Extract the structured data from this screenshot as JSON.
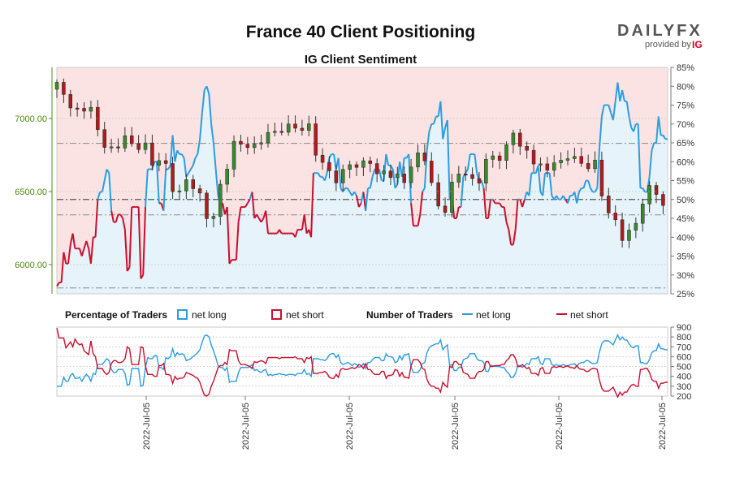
{
  "title": "France 40 Client Positioning",
  "subtitle": "IG Client Sentiment",
  "logo": {
    "brand": "DAILYFX",
    "provided_by": "provided by",
    "ig": "IG"
  },
  "colors": {
    "long": "#2b9de0",
    "short": "#c8102e",
    "bear_band": "#fbe3e4",
    "bull_band": "#e6f3fb",
    "candle_up": "#3a8a2a",
    "candle_down": "#b01c1c",
    "price_axis": "#4f8a10"
  },
  "legend": {
    "pct_heading": "Percentage of Traders",
    "num_heading": "Number of Traders",
    "net_long": "net long",
    "net_short": "net short"
  },
  "chart_data": [
    {
      "type": "candlestick",
      "title": "France 40 Client Positioning",
      "subtitle": "IG Client Sentiment",
      "y_left_label": "",
      "y_left_ticks": [
        "6000.00",
        "6500.00",
        "7000.00"
      ],
      "y_left_range": [
        5800,
        7350
      ],
      "y_right_ticks": [
        "25%",
        "30%",
        "35%",
        "40%",
        "45%",
        "50%",
        "55%",
        "60%",
        "65%",
        "70%",
        "75%",
        "80%",
        "85%"
      ],
      "y_right_range": [
        25,
        85
      ],
      "reference_lines": {
        "price": [
          6830,
          6340,
          5840
        ],
        "percent_net_long": 50
      },
      "net_long_pct": [
        27,
        28,
        28,
        36,
        33,
        33,
        38,
        41,
        37,
        37,
        37,
        35,
        37,
        39,
        37,
        33,
        40,
        40,
        50,
        52,
        52,
        55,
        58,
        57,
        47,
        44,
        44,
        46,
        46,
        45,
        42,
        31,
        32,
        48,
        48,
        48,
        48,
        29,
        30,
        48,
        58,
        58,
        58,
        60,
        60,
        49,
        49,
        47,
        58,
        58,
        59,
        67,
        60,
        63,
        62,
        62,
        61,
        56,
        57,
        58,
        59,
        61,
        62,
        66,
        73,
        79,
        80,
        78,
        70,
        65,
        58,
        51,
        49,
        49,
        46,
        48,
        33,
        34,
        34,
        34,
        44,
        48,
        48,
        48,
        49,
        50,
        52,
        45,
        46,
        45,
        44,
        45,
        47,
        41,
        41,
        41,
        41,
        41,
        42,
        41,
        41,
        41,
        41,
        41,
        41,
        40,
        42,
        42,
        42,
        46,
        41,
        42,
        40,
        57,
        57,
        57,
        56,
        56,
        55,
        57,
        61,
        62,
        62,
        58,
        61,
        53,
        52,
        53,
        53,
        52,
        51,
        52,
        51,
        48,
        49,
        52,
        47,
        53,
        53,
        56,
        58,
        58,
        58,
        55,
        55,
        62,
        59,
        59,
        58,
        53,
        54,
        60,
        56,
        61,
        61,
        62,
        49,
        43,
        43,
        43,
        46,
        52,
        53,
        63,
        68,
        70,
        70,
        72,
        72,
        76,
        66,
        69,
        71,
        50,
        51,
        45,
        45,
        48,
        48,
        56,
        57,
        58,
        62,
        62,
        62,
        57,
        55,
        55,
        53,
        45,
        45,
        50,
        50,
        49,
        49,
        49,
        48,
        48,
        44,
        42,
        38,
        38,
        42,
        50,
        50,
        48,
        50,
        52,
        51,
        57,
        57,
        57,
        59,
        52,
        51,
        57,
        57,
        57,
        51,
        50,
        51,
        50,
        50,
        51,
        50,
        49,
        51,
        51,
        52,
        49,
        52,
        53,
        53,
        55,
        55,
        53,
        52,
        52,
        53,
        64,
        72,
        75,
        75,
        75,
        73,
        71,
        76,
        81,
        76,
        79,
        76,
        76,
        72,
        69,
        68,
        70,
        70,
        53,
        53,
        52,
        52,
        56,
        63,
        65,
        65,
        72,
        67,
        67,
        66,
        66
      ],
      "reading_notes": "price candles plotted against left axis; net-long % shaded line against right axis"
    },
    {
      "type": "line",
      "title": "",
      "legend": [
        "Percentage of Traders net long",
        "Percentage of Traders net short",
        "Number of Traders net long",
        "Number of Traders net short"
      ],
      "y_ticks": [
        "200",
        "300",
        "400",
        "500",
        "600",
        "700",
        "800",
        "900"
      ],
      "y_range": [
        200,
        900
      ],
      "x_tick_labels": [
        "2022-Jul-05",
        "2022-Jul-05",
        "2022-Jul-05",
        "2022-Jul-05",
        "2022-Jul-05",
        "2022-Jul-05"
      ],
      "series": [
        {
          "name": "net long",
          "values": [
            300,
            300,
            300,
            390,
            350,
            350,
            410,
            430,
            380,
            380,
            390,
            350,
            390,
            420,
            400,
            350,
            430,
            420,
            520,
            520,
            520,
            550,
            580,
            560,
            470,
            440,
            440,
            470,
            470,
            470,
            430,
            310,
            320,
            480,
            480,
            480,
            480,
            300,
            310,
            490,
            590,
            580,
            580,
            610,
            610,
            490,
            490,
            470,
            590,
            580,
            600,
            680,
            600,
            640,
            620,
            630,
            620,
            560,
            570,
            580,
            600,
            620,
            640,
            670,
            750,
            810,
            820,
            800,
            720,
            660,
            590,
            510,
            490,
            490,
            460,
            490,
            340,
            350,
            350,
            350,
            440,
            490,
            490,
            490,
            490,
            500,
            520,
            460,
            470,
            450,
            440,
            460,
            470,
            410,
            420,
            410,
            420,
            420,
            430,
            420,
            420,
            410,
            420,
            420,
            420,
            410,
            430,
            430,
            430,
            470,
            420,
            430,
            400,
            580,
            580,
            580,
            570,
            570,
            560,
            580,
            620,
            630,
            630,
            590,
            620,
            540,
            520,
            530,
            540,
            530,
            510,
            530,
            520,
            490,
            500,
            530,
            480,
            540,
            540,
            570,
            590,
            590,
            590,
            560,
            560,
            630,
            600,
            600,
            590,
            540,
            550,
            610,
            570,
            620,
            620,
            630,
            500,
            440,
            440,
            440,
            470,
            530,
            540,
            640,
            690,
            710,
            720,
            730,
            730,
            770,
            670,
            700,
            720,
            510,
            520,
            460,
            460,
            490,
            490,
            570,
            580,
            590,
            630,
            630,
            630,
            580,
            560,
            560,
            540,
            450,
            450,
            510,
            510,
            500,
            500,
            500,
            490,
            490,
            450,
            430,
            390,
            390,
            430,
            510,
            510,
            490,
            510,
            530,
            520,
            580,
            580,
            580,
            600,
            530,
            520,
            580,
            580,
            580,
            520,
            510,
            520,
            510,
            510,
            520,
            510,
            500,
            520,
            520,
            530,
            500,
            530,
            540,
            540,
            560,
            560,
            540,
            530,
            530,
            540,
            650,
            730,
            760,
            760,
            760,
            740,
            720,
            770,
            820,
            770,
            800,
            770,
            770,
            730,
            700,
            690,
            710,
            710,
            540,
            540,
            530,
            530,
            570,
            640,
            660,
            660,
            730,
            680,
            680,
            670,
            670
          ]
        },
        {
          "name": "net short",
          "values": [
            890,
            790,
            790,
            790,
            690,
            720,
            750,
            700,
            780,
            740,
            720,
            730,
            660,
            640,
            620,
            760,
            630,
            600,
            480,
            480,
            480,
            440,
            420,
            440,
            530,
            560,
            560,
            540,
            540,
            550,
            580,
            700,
            680,
            520,
            520,
            520,
            520,
            700,
            690,
            510,
            420,
            420,
            420,
            400,
            400,
            510,
            510,
            530,
            420,
            420,
            410,
            330,
            400,
            370,
            380,
            380,
            390,
            440,
            430,
            420,
            410,
            390,
            380,
            340,
            270,
            210,
            200,
            220,
            300,
            350,
            420,
            490,
            510,
            510,
            540,
            520,
            670,
            660,
            660,
            660,
            560,
            520,
            520,
            520,
            510,
            500,
            480,
            550,
            540,
            550,
            560,
            550,
            530,
            590,
            590,
            590,
            590,
            590,
            580,
            590,
            590,
            590,
            590,
            590,
            590,
            600,
            580,
            580,
            580,
            540,
            590,
            580,
            600,
            430,
            430,
            430,
            440,
            440,
            450,
            430,
            390,
            380,
            380,
            420,
            390,
            470,
            480,
            470,
            470,
            480,
            490,
            480,
            490,
            520,
            510,
            480,
            530,
            470,
            470,
            440,
            420,
            420,
            420,
            450,
            450,
            380,
            410,
            410,
            420,
            470,
            460,
            400,
            440,
            390,
            390,
            380,
            510,
            570,
            570,
            570,
            540,
            480,
            470,
            370,
            320,
            300,
            300,
            280,
            280,
            240,
            340,
            310,
            290,
            500,
            490,
            550,
            550,
            520,
            520,
            440,
            430,
            420,
            380,
            380,
            380,
            430,
            450,
            450,
            470,
            550,
            550,
            500,
            500,
            510,
            510,
            510,
            520,
            520,
            560,
            580,
            620,
            620,
            580,
            500,
            500,
            520,
            500,
            480,
            490,
            430,
            430,
            430,
            410,
            480,
            490,
            430,
            430,
            430,
            490,
            500,
            490,
            500,
            500,
            490,
            500,
            510,
            490,
            490,
            480,
            510,
            480,
            470,
            470,
            450,
            450,
            470,
            480,
            480,
            470,
            360,
            280,
            250,
            250,
            250,
            270,
            290,
            240,
            190,
            240,
            210,
            240,
            240,
            280,
            310,
            320,
            300,
            300,
            470,
            470,
            480,
            480,
            440,
            370,
            350,
            350,
            280,
            330,
            330,
            340,
            340
          ]
        }
      ]
    }
  ]
}
